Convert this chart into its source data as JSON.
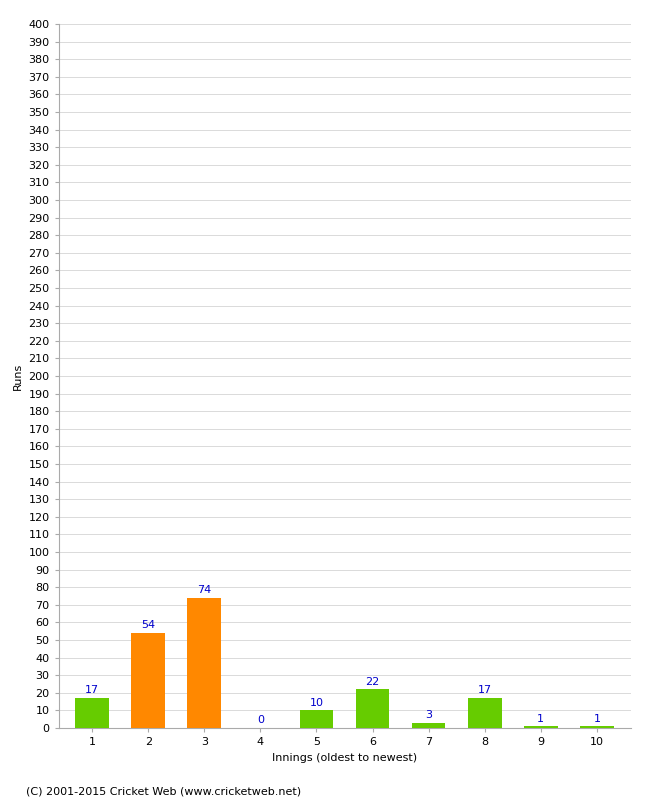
{
  "xlabel": "Innings (oldest to newest)",
  "ylabel": "Runs",
  "categories": [
    "1",
    "2",
    "3",
    "4",
    "5",
    "6",
    "7",
    "8",
    "9",
    "10"
  ],
  "values": [
    17,
    54,
    74,
    0,
    10,
    22,
    3,
    17,
    1,
    1
  ],
  "bar_colors": [
    "#66cc00",
    "#ff8800",
    "#ff8800",
    "#66cc00",
    "#66cc00",
    "#66cc00",
    "#66cc00",
    "#66cc00",
    "#66cc00",
    "#66cc00"
  ],
  "label_color": "#0000cc",
  "ylim": [
    0,
    400
  ],
  "ytick_step": 10,
  "background_color": "#ffffff",
  "grid_color": "#cccccc",
  "footer": "(C) 2001-2015 Cricket Web (www.cricketweb.net)",
  "label_fontsize": 8,
  "tick_fontsize": 8,
  "footer_fontsize": 8,
  "bar_value_fontsize": 8
}
